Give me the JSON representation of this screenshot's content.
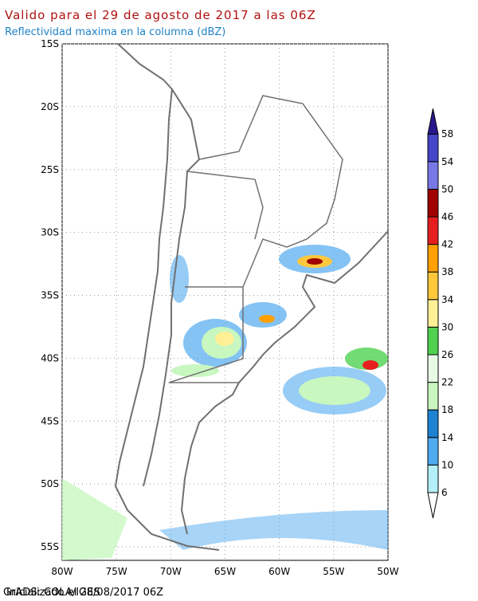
{
  "header": {
    "title": "Valido para el 29 de agosto de 2017 a las 06Z",
    "subtitle": "Reflectividad maxima en la columna (dBZ)"
  },
  "map": {
    "lat_labels": [
      "15S",
      "20S",
      "25S",
      "30S",
      "35S",
      "40S",
      "45S",
      "50S",
      "55S"
    ],
    "lon_labels": [
      "80W",
      "75W",
      "70W",
      "65W",
      "60W",
      "55W",
      "50W"
    ]
  },
  "colorbar": {
    "levels": [
      6,
      10,
      14,
      18,
      22,
      26,
      30,
      34,
      38,
      42,
      46,
      50,
      54,
      58
    ],
    "colors": [
      "#ffffff",
      "#b4f0fa",
      "#50aaf0",
      "#1e82d2",
      "#c8f7c0",
      "#e8fae6",
      "#50d250",
      "#fff096",
      "#ffc83c",
      "#ffa000",
      "#e61e1e",
      "#a00000",
      "#7878e6",
      "#4646c8",
      "#28188c"
    ]
  },
  "footer": {
    "grads": "GrADS: COLA/IGES",
    "init": "Inicializado el 28/08/2017 06Z"
  }
}
